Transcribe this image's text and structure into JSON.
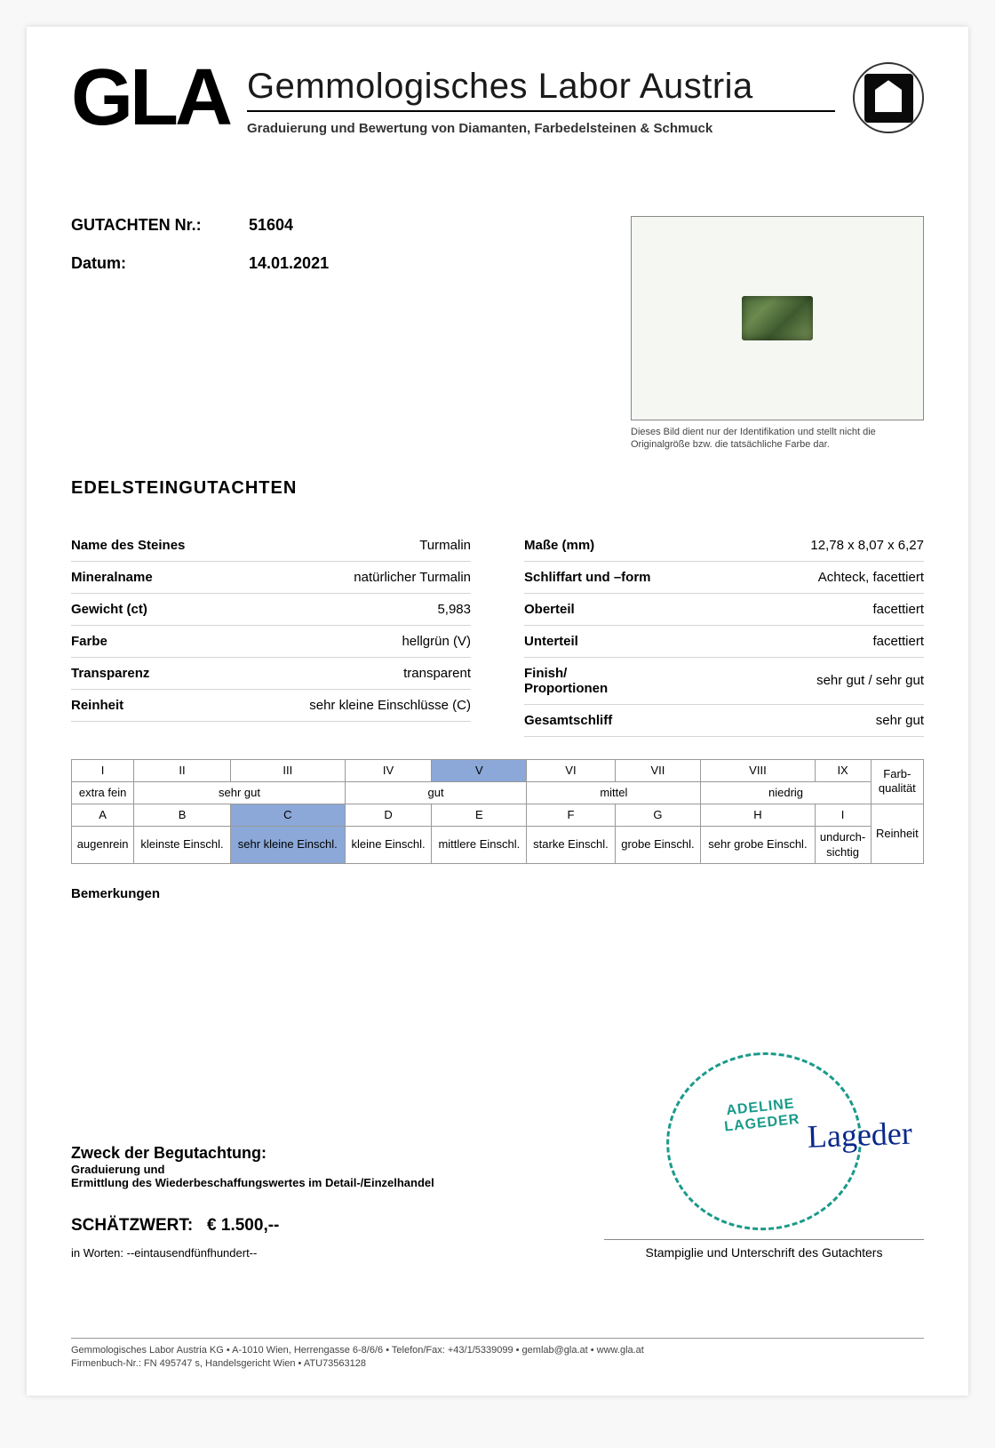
{
  "header": {
    "logo": "GLA",
    "title": "Gemmologisches Labor Austria",
    "subtitle": "Graduierung und Bewertung von Diamanten, Farbedelsteinen & Schmuck"
  },
  "report": {
    "number_label": "GUTACHTEN Nr.:",
    "number": "51604",
    "date_label": "Datum:",
    "date": "14.01.2021",
    "section_title": "EDELSTEINGUTACHTEN",
    "photo_caption": "Dieses Bild dient nur der Identifikation und stellt nicht die Originalgröße bzw. die tatsächliche Farbe dar."
  },
  "specs_left": [
    {
      "label": "Name des Steines",
      "value": "Turmalin"
    },
    {
      "label": "Mineralname",
      "value": "natürlicher Turmalin"
    },
    {
      "label": "Gewicht (ct)",
      "value": "5,983"
    },
    {
      "label": "Farbe",
      "value": "hellgrün (V)"
    },
    {
      "label": "Transparenz",
      "value": "transparent"
    },
    {
      "label": "Reinheit",
      "value": "sehr kleine Einschlüsse (C)"
    }
  ],
  "specs_right": [
    {
      "label": "Maße (mm)",
      "value": "12,78 x 8,07 x 6,27"
    },
    {
      "label": "Schliffart und –form",
      "value": "Achteck, facettiert"
    },
    {
      "label": "Oberteil",
      "value": "facettiert"
    },
    {
      "label": "Unterteil",
      "value": "facettiert"
    },
    {
      "label": "Finish/\nProportionen",
      "value": "sehr gut / sehr gut"
    },
    {
      "label": "Gesamtschliff",
      "value": "sehr gut"
    }
  ],
  "grade": {
    "roman": [
      "I",
      "II",
      "III",
      "IV",
      "V",
      "VI",
      "VII",
      "VIII",
      "IX"
    ],
    "color_labels": [
      "extra fein",
      "sehr gut",
      "gut",
      "mittel",
      "niedrig"
    ],
    "color_side": "Farb-\nqualität",
    "letters": [
      "A",
      "B",
      "C",
      "D",
      "E",
      "F",
      "G",
      "H",
      "I"
    ],
    "clarity_labels": [
      "augenrein",
      "kleinste Einschl.",
      "sehr kleine Einschl.",
      "kleine Einschl.",
      "mittlere Einschl.",
      "starke Einschl.",
      "grobe Einschl.",
      "sehr grobe Einschl.",
      "undurch-\nsichtig"
    ],
    "clarity_side": "Reinheit",
    "color_hl_index": 4,
    "clarity_hl_index": 2,
    "hl_color": "#8ba8d8"
  },
  "remarks_label": "Bemerkungen",
  "purpose": {
    "title": "Zweck der Begutachtung:",
    "line1": "Graduierung und",
    "line2": "Ermittlung des Wiederbeschaffungswertes im Detail-/Einzelhandel"
  },
  "estimate": {
    "label": "SCHÄTZWERT:",
    "value": "€ 1.500,--",
    "words_label": "in Worten:",
    "words": "--eintausendfünfhundert--"
  },
  "stamp": {
    "name1": "ADELINE",
    "name2": "LAGEDER",
    "caption": "Stampiglie und Unterschrift des Gutachters"
  },
  "footer": {
    "line1": "Gemmologisches Labor Austria KG • A-1010 Wien, Herrengasse 6-8/6/6 • Telefon/Fax: +43/1/5339099 • gemlab@gla.at • www.gla.at",
    "line2": "Firmenbuch-Nr.: FN 495747 s, Handelsgericht Wien • ATU73563128"
  }
}
